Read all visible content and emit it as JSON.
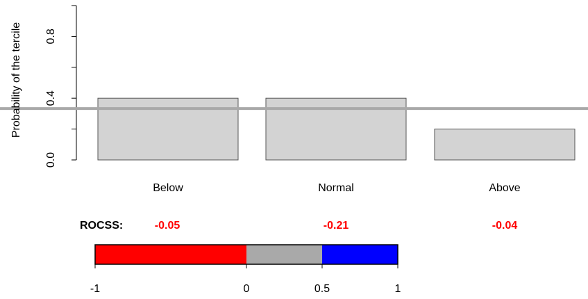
{
  "chart_data": {
    "type": "bar",
    "ylabel": "Probability of the tercile",
    "categories": [
      "Below",
      "Normal",
      "Above"
    ],
    "values": [
      0.4,
      0.4,
      0.2
    ],
    "ylim": [
      0,
      1
    ],
    "yticks": [
      "0.0",
      "0.4",
      "0.8"
    ],
    "ytick_values": [
      0,
      0.4,
      0.8
    ],
    "ytick_minor_values": [
      0.2,
      0.6,
      1.0
    ],
    "reference_line": 0.333,
    "bar_color": "#d3d3d3",
    "reference_line_color": "#a9a9a9",
    "rocss": {
      "label": "ROCSS:",
      "values": [
        "-0.05",
        "-0.21",
        "-0.04"
      ],
      "value_color": "#ff0000"
    },
    "colorbar": {
      "segments": [
        {
          "from": -1,
          "to": 0,
          "color": "#ff0000"
        },
        {
          "from": 0,
          "to": 0.5,
          "color": "#a9a9a9"
        },
        {
          "from": 0.5,
          "to": 1,
          "color": "#0000ff"
        }
      ],
      "tick_labels": [
        "-1",
        "0",
        "0.5",
        "1"
      ],
      "tick_values": [
        -1,
        0,
        0.5,
        1
      ]
    }
  }
}
